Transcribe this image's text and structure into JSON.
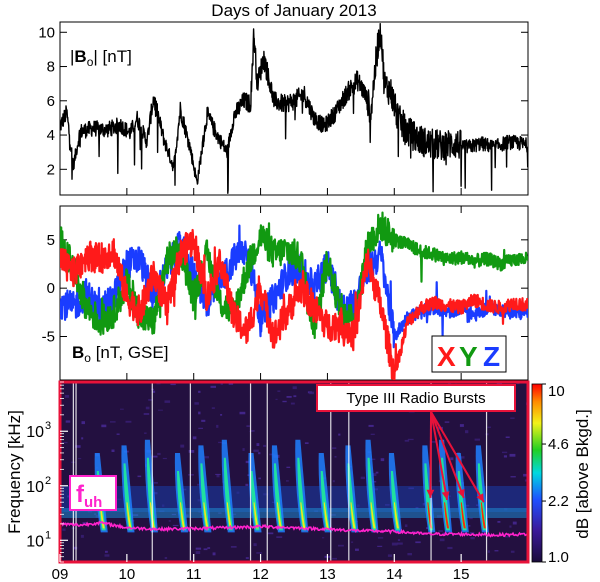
{
  "chart_data": [
    {
      "type": "line",
      "panel": "magnitude",
      "title": "Days of January 2013",
      "label_main": "|",
      "label_bold": "B",
      "label_sub": "o",
      "label_rest": "| [nT]",
      "xlim": [
        9,
        16
      ],
      "ylim": [
        0.5,
        10.6
      ],
      "yticks": [
        "2",
        "4",
        "6",
        "8",
        "10"
      ],
      "ytick_values": [
        2,
        4,
        6,
        8,
        10
      ],
      "color": "#000000",
      "series": [
        {
          "x": [
            9.0,
            9.1,
            9.2,
            9.3,
            9.5,
            9.7,
            9.9,
            10.05,
            10.15,
            10.3,
            10.4,
            10.55,
            10.7,
            10.8,
            10.95,
            11.05,
            11.2,
            11.35,
            11.5,
            11.6,
            11.75,
            11.85,
            11.9,
            11.95,
            12.05,
            12.2,
            12.35,
            12.5,
            12.65,
            12.8,
            12.95,
            13.1,
            13.3,
            13.45,
            13.55,
            13.65,
            13.75,
            13.8,
            13.85,
            13.95,
            14.05,
            14.2,
            14.35,
            14.5,
            14.7,
            14.9,
            15.1,
            15.3,
            15.5,
            15.7,
            15.9,
            16.0
          ],
          "values": [
            4.5,
            5.3,
            2.2,
            4.2,
            4.4,
            4.3,
            4.6,
            4.1,
            5.0,
            3.6,
            6.2,
            3.8,
            2.1,
            5.5,
            3.2,
            1.2,
            5.2,
            4.0,
            3.0,
            5.1,
            6.0,
            5.8,
            10.0,
            7.0,
            8.5,
            6.0,
            5.8,
            6.0,
            6.4,
            5.0,
            4.5,
            5.2,
            6.5,
            7.2,
            6.5,
            5.4,
            9.2,
            10.2,
            7.0,
            6.5,
            5.0,
            4.2,
            3.8,
            3.5,
            3.4,
            3.5,
            3.3,
            3.5,
            3.3,
            3.6,
            3.5,
            3.4
          ]
        }
      ]
    },
    {
      "type": "line",
      "panel": "components",
      "label_bold": "B",
      "label_sub": "o",
      "label_rest": " [nT, GSE]",
      "xlim": [
        9,
        16
      ],
      "ylim": [
        -9.5,
        8.5
      ],
      "yticks": [
        "5",
        "0",
        "-5"
      ],
      "ytick_values": [
        5,
        0,
        -5
      ],
      "legend": [
        "X",
        "Y",
        "Z"
      ],
      "legend_colors": [
        "#ff1a1a",
        "#119911",
        "#1a3cff"
      ],
      "series": [
        {
          "name": "Z",
          "color": "#1a3cff",
          "x": [
            9.0,
            9.2,
            9.4,
            9.6,
            9.8,
            10.0,
            10.2,
            10.4,
            10.6,
            10.8,
            11.0,
            11.2,
            11.4,
            11.6,
            11.8,
            12.0,
            12.2,
            12.4,
            12.6,
            12.8,
            13.0,
            13.2,
            13.4,
            13.6,
            13.8,
            14.0,
            14.2,
            14.4,
            14.6,
            14.8,
            15.0,
            15.2,
            15.4,
            15.6,
            15.8,
            16.0
          ],
          "values": [
            -1.5,
            -2.0,
            -0.5,
            -2.5,
            -1.0,
            2.5,
            3.0,
            -1.0,
            2.0,
            4.5,
            1.5,
            -1.5,
            0.5,
            3.0,
            4.0,
            -3.0,
            -1.0,
            1.5,
            2.0,
            0.0,
            2.5,
            -2.0,
            -1.5,
            2.0,
            3.5,
            -5.0,
            -3.0,
            -2.5,
            -2.0,
            -2.5,
            -2.0,
            -2.8,
            -2.0,
            -2.2,
            -2.6,
            -2.5
          ]
        },
        {
          "name": "Y",
          "color": "#119911",
          "x": [
            9.0,
            9.2,
            9.4,
            9.6,
            9.8,
            10.0,
            10.2,
            10.4,
            10.6,
            10.8,
            11.0,
            11.2,
            11.4,
            11.6,
            11.8,
            12.0,
            12.2,
            12.4,
            12.6,
            12.8,
            13.0,
            13.2,
            13.4,
            13.6,
            13.8,
            14.0,
            14.2,
            14.4,
            14.6,
            14.8,
            15.0,
            15.2,
            15.4,
            15.6,
            15.8,
            16.0
          ],
          "values": [
            5.0,
            2.0,
            -2.0,
            -3.5,
            -2.5,
            0.5,
            -3.0,
            -3.5,
            3.0,
            4.0,
            -1.0,
            3.5,
            -1.5,
            -2.5,
            2.0,
            5.5,
            3.5,
            4.0,
            3.0,
            -4.0,
            3.0,
            -2.5,
            -3.5,
            4.5,
            6.5,
            5.0,
            4.5,
            3.8,
            3.5,
            3.0,
            3.2,
            2.8,
            3.0,
            2.5,
            3.0,
            3.0
          ]
        },
        {
          "name": "X",
          "color": "#ff1a1a",
          "x": [
            9.0,
            9.2,
            9.4,
            9.6,
            9.8,
            10.0,
            10.2,
            10.4,
            10.6,
            10.8,
            11.0,
            11.2,
            11.4,
            11.6,
            11.8,
            12.0,
            12.2,
            12.4,
            12.6,
            12.8,
            13.0,
            13.2,
            13.4,
            13.6,
            13.8,
            14.0,
            14.2,
            14.4,
            14.6,
            14.8,
            15.0,
            15.2,
            15.4,
            15.6,
            15.8,
            16.0
          ],
          "values": [
            3.0,
            1.5,
            3.5,
            3.0,
            4.0,
            -1.0,
            -2.5,
            1.5,
            -2.0,
            3.5,
            5.0,
            -1.0,
            3.0,
            -3.0,
            -4.5,
            0.0,
            -5.0,
            -2.5,
            0.0,
            -2.0,
            -4.0,
            -3.5,
            -5.0,
            3.0,
            -2.0,
            -9.0,
            -3.5,
            -2.0,
            -1.5,
            -1.8,
            -2.0,
            -1.2,
            -1.8,
            -2.0,
            -1.5,
            -1.8
          ]
        }
      ]
    },
    {
      "type": "heatmap",
      "panel": "spectrogram",
      "ylabel": "Frequency [kHz]",
      "xlim": [
        9,
        16
      ],
      "xticks": [
        "09",
        "10",
        "11",
        "12",
        "13",
        "14",
        "15"
      ],
      "xtick_values": [
        9,
        10,
        11,
        12,
        13,
        14,
        15
      ],
      "ylim": [
        4,
        8000
      ],
      "yscale": "log",
      "yticks": [
        "10",
        "10",
        "10"
      ],
      "ytick_exponents": [
        "1",
        "2",
        "3"
      ],
      "ytick_values": [
        10,
        100,
        1000
      ],
      "annotation": "Type III Radio Bursts",
      "fuh_label_main": "f",
      "fuh_label_sub": "uh",
      "fuh_color": "#ff22cc",
      "colorbar": {
        "label": "dB [above Bkgd.]",
        "ticks": [
          "10",
          "4.6",
          "2.2",
          "1.0"
        ],
        "tick_values": [
          10,
          4.6,
          2.2,
          1.0
        ],
        "range": [
          1.0,
          10
        ],
        "scale": "log"
      },
      "burst_times": [
        9.55,
        9.95,
        10.3,
        10.75,
        11.1,
        11.45,
        11.85,
        12.2,
        12.55,
        12.9,
        13.3,
        13.6,
        13.95,
        14.45,
        14.7,
        14.95,
        15.25
      ],
      "fuh_line": {
        "x": [
          9.0,
          9.3,
          9.6,
          10.0,
          10.5,
          11.0,
          11.5,
          12.0,
          12.5,
          13.0,
          13.5,
          14.0,
          14.5,
          15.0,
          15.5,
          16.0
        ],
        "values": [
          20,
          19,
          21,
          17,
          16,
          16.5,
          17,
          18,
          17,
          16,
          15,
          14.5,
          13,
          13,
          12.5,
          13
        ]
      }
    }
  ]
}
